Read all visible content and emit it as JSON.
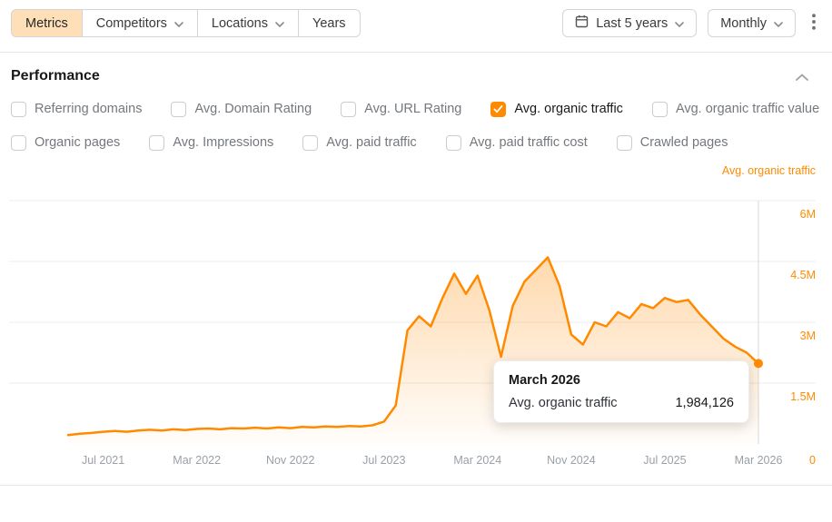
{
  "colors": {
    "accent": "#ff8a00",
    "active_tab_bg": "#ffdfb8",
    "gridline": "#ececec",
    "crosshair": "#dadada"
  },
  "toolbar": {
    "tabs": [
      {
        "label": "Metrics",
        "active": true,
        "has_dropdown": false
      },
      {
        "label": "Competitors",
        "active": false,
        "has_dropdown": true
      },
      {
        "label": "Locations",
        "active": false,
        "has_dropdown": true
      },
      {
        "label": "Years",
        "active": false,
        "has_dropdown": false
      }
    ],
    "date_range": {
      "label": "Last 5 years",
      "icon": "calendar-icon"
    },
    "granularity": {
      "label": "Monthly"
    },
    "more_menu_icon": "kebab-menu-icon"
  },
  "performance": {
    "title": "Performance",
    "metrics": [
      {
        "label": "Referring domains",
        "checked": false
      },
      {
        "label": "Avg. Domain Rating",
        "checked": false
      },
      {
        "label": "Avg. URL Rating",
        "checked": false
      },
      {
        "label": "Avg. organic traffic",
        "checked": true
      },
      {
        "label": "Avg. organic traffic value",
        "checked": false
      },
      {
        "label": "Organic pages",
        "checked": false
      },
      {
        "label": "Avg. Impressions",
        "checked": false
      },
      {
        "label": "Avg. paid traffic",
        "checked": false
      },
      {
        "label": "Avg. paid traffic cost",
        "checked": false
      },
      {
        "label": "Crawled pages",
        "checked": false
      }
    ]
  },
  "chart_data": {
    "type": "area",
    "legend": "Avg. organic traffic",
    "x_range": [
      "Apr 2021",
      "Mar 2026"
    ],
    "x_interval": "monthly",
    "x_tick_labels": [
      "Jul 2021",
      "Mar 2022",
      "Nov 2022",
      "Jul 2023",
      "Mar 2024",
      "Nov 2024",
      "Jul 2025",
      "Mar 2026"
    ],
    "x_tick_indices": [
      3,
      11,
      19,
      27,
      35,
      43,
      51,
      59
    ],
    "y_tick_labels": [
      "6M",
      "4.5M",
      "3M",
      "1.5M",
      "0"
    ],
    "y_gridline_values_millions": [
      6,
      4.5,
      3,
      1.5
    ],
    "ylim_millions": [
      0,
      6
    ],
    "grid": true,
    "legend_position": "top-right",
    "series": [
      {
        "name": "Avg. organic traffic",
        "color": "#ff8a00",
        "values_millions": [
          0.22,
          0.25,
          0.27,
          0.3,
          0.32,
          0.3,
          0.33,
          0.35,
          0.33,
          0.36,
          0.34,
          0.37,
          0.38,
          0.36,
          0.39,
          0.38,
          0.4,
          0.38,
          0.41,
          0.39,
          0.42,
          0.41,
          0.43,
          0.42,
          0.44,
          0.43,
          0.46,
          0.55,
          0.95,
          2.8,
          3.15,
          2.9,
          3.6,
          4.2,
          3.7,
          4.15,
          3.3,
          2.15,
          3.4,
          4.0,
          4.3,
          4.6,
          3.9,
          2.7,
          2.45,
          3.0,
          2.9,
          3.25,
          3.1,
          3.45,
          3.35,
          3.6,
          3.5,
          3.55,
          3.2,
          2.9,
          2.6,
          2.4,
          2.25,
          1.984126
        ]
      }
    ],
    "tooltip": {
      "title": "March 2026",
      "metric": "Avg. organic traffic",
      "value": "1,984,126",
      "point_index": 59
    }
  }
}
